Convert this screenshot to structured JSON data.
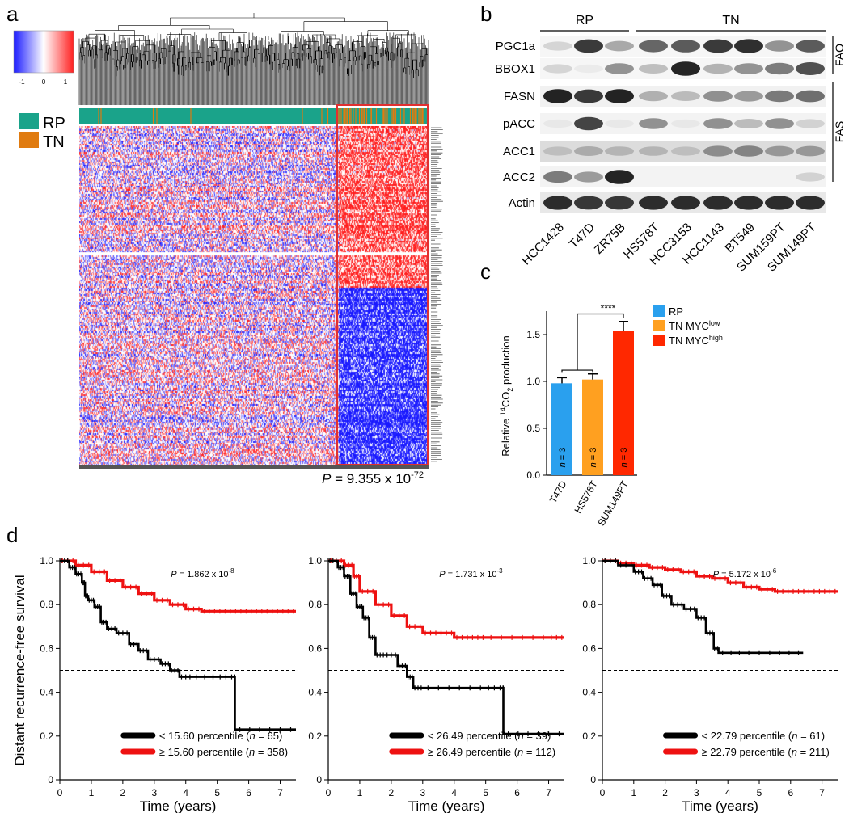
{
  "panel_labels": {
    "a": "a",
    "b": "b",
    "c": "c",
    "d": "d"
  },
  "panel_a": {
    "scale_ticks": [
      "-1",
      "0",
      "1"
    ],
    "legend": [
      {
        "label": "RP",
        "color": "#1aa38a"
      },
      {
        "label": "TN",
        "color": "#e07b10"
      }
    ],
    "p_value": {
      "prefix": "P",
      "eq": " = 9.355 x 10",
      "exp": "-72"
    },
    "colors": {
      "high": "#ff2020",
      "low": "#1a1aff",
      "rp": "#1aa38a",
      "tn": "#e07b10",
      "box": "#e03030"
    }
  },
  "panel_b": {
    "groups": [
      {
        "label": "RP"
      },
      {
        "label": "TN"
      }
    ],
    "rows": [
      "PGC1a",
      "BBOX1",
      "FASN",
      "pACC",
      "ACC1",
      "ACC2",
      "Actin"
    ],
    "brackets": [
      {
        "label": "FAO"
      },
      {
        "label": "FAS"
      }
    ],
    "lanes": [
      "HCC1428",
      "T47D",
      "ZR75B",
      "HS578T",
      "HCC3153",
      "HCC1143",
      "BT549",
      "SUM159PT",
      "SUM149PT"
    ]
  },
  "panel_c": {
    "chart_data": {
      "type": "bar",
      "categories": [
        "T47D",
        "HS578T",
        "SUM149PT"
      ],
      "values": [
        0.98,
        1.02,
        1.54
      ],
      "errors": [
        0.06,
        0.06,
        0.1
      ],
      "n_labels": [
        "n = 3",
        "n = 3",
        "n = 3"
      ],
      "colors": [
        "#2aa0ee",
        "#ffa020",
        "#ff2800"
      ],
      "ylabel": "Relative 14CO2 production",
      "ylabel_parts": {
        "pre": "Relative ",
        "sup": "14",
        "mid": "CO",
        "sub": "2",
        "post": " production"
      },
      "ylim": [
        0,
        1.75
      ],
      "yticks": [
        "0.0",
        "0.5",
        "1.0",
        "1.5"
      ],
      "significance": "****",
      "legend": [
        {
          "label": "RP",
          "sup": "",
          "color": "#2aa0ee"
        },
        {
          "label": "TN MYC",
          "sup": "low",
          "color": "#ffa020"
        },
        {
          "label": "TN MYC",
          "sup": "high",
          "color": "#ff2800"
        }
      ]
    }
  },
  "panel_d": {
    "chart_data": [
      {
        "type": "line",
        "xlabel": "Time (years)",
        "ylabel": "Distant recurrence-free survival",
        "xlim": [
          0,
          7.5
        ],
        "ylim": [
          0,
          1.0
        ],
        "xticks": [
          "0",
          "1",
          "2",
          "3",
          "4",
          "5",
          "6",
          "7"
        ],
        "yticks": [
          "0",
          "0.2",
          "0.4",
          "0.6",
          "0.8",
          "1.0"
        ],
        "p_value": {
          "prefix": "P",
          "eq": " = 1.862 x 10",
          "exp": "-8"
        },
        "reference_line": 0.5,
        "series": [
          {
            "name": "< 15.60 percentile",
            "n": "65",
            "color": "#000000",
            "x": [
              0,
              0.3,
              0.5,
              0.7,
              0.8,
              0.9,
              1.1,
              1.3,
              1.5,
              1.8,
              2.2,
              2.5,
              2.8,
              3.2,
              3.5,
              3.8,
              4.2,
              5.0,
              5.55,
              5.56,
              6.5,
              7.5
            ],
            "y": [
              1.0,
              0.97,
              0.94,
              0.9,
              0.84,
              0.82,
              0.79,
              0.72,
              0.69,
              0.67,
              0.62,
              0.59,
              0.55,
              0.53,
              0.5,
              0.47,
              0.47,
              0.47,
              0.47,
              0.23,
              0.23,
              0.23
            ]
          },
          {
            "name": "≥ 15.60 percentile",
            "n": "358",
            "color": "#ee1111",
            "x": [
              0,
              0.5,
              1,
              1.5,
              2,
              2.5,
              3,
              3.5,
              4,
              4.5,
              5,
              5.5,
              6,
              6.5,
              7,
              7.5
            ],
            "y": [
              1.0,
              0.98,
              0.95,
              0.91,
              0.88,
              0.85,
              0.82,
              0.8,
              0.78,
              0.77,
              0.77,
              0.77,
              0.77,
              0.77,
              0.77,
              0.77
            ]
          }
        ],
        "legend_labels": [
          {
            "text": "< 15.60 percentile (",
            "n": "n",
            "rest": " = 65)"
          },
          {
            "text": "≥ 15.60 percentile (",
            "n": "n",
            "rest": " = 358)"
          }
        ]
      },
      {
        "type": "line",
        "xlabel": "Time (years)",
        "ylabel": "",
        "xlim": [
          0,
          7.5
        ],
        "ylim": [
          0,
          1.0
        ],
        "xticks": [
          "0",
          "1",
          "2",
          "3",
          "4",
          "5",
          "6",
          "7"
        ],
        "yticks": [
          "0",
          "0.2",
          "0.4",
          "0.6",
          "0.8",
          "1.0"
        ],
        "p_value": {
          "prefix": "P",
          "eq": " = 1.731 x 10",
          "exp": "-3"
        },
        "reference_line": 0.5,
        "series": [
          {
            "name": "< 26.49 percentile",
            "n": "39",
            "color": "#000000",
            "x": [
              0,
              0.3,
              0.5,
              0.7,
              0.9,
              1.1,
              1.3,
              1.5,
              1.8,
              2.2,
              2.5,
              2.7,
              3.0,
              4.0,
              5.0,
              5.55,
              5.56,
              6.5,
              7.5
            ],
            "y": [
              1.0,
              0.97,
              0.93,
              0.85,
              0.79,
              0.74,
              0.65,
              0.57,
              0.57,
              0.52,
              0.47,
              0.42,
              0.42,
              0.42,
              0.42,
              0.42,
              0.21,
              0.21,
              0.21
            ]
          },
          {
            "name": "≥ 26.49 percentile",
            "n": "112",
            "color": "#ee1111",
            "x": [
              0,
              0.5,
              0.8,
              1.0,
              1.5,
              2.0,
              2.5,
              3.0,
              3.5,
              4.0,
              4.5,
              5.0,
              6.0,
              7.0,
              7.5
            ],
            "y": [
              1.0,
              0.98,
              0.93,
              0.86,
              0.8,
              0.75,
              0.7,
              0.67,
              0.67,
              0.65,
              0.65,
              0.65,
              0.65,
              0.65,
              0.65
            ]
          }
        ],
        "legend_labels": [
          {
            "text": "< 26.49 percentile (",
            "n": "n",
            "rest": " = 39)"
          },
          {
            "text": "≥ 26.49 percentile (",
            "n": "n",
            "rest": " = 112)"
          }
        ]
      },
      {
        "type": "line",
        "xlabel": "Time (years)",
        "ylabel": "",
        "xlim": [
          0,
          7.5
        ],
        "ylim": [
          0,
          1.0
        ],
        "xticks": [
          "0",
          "1",
          "2",
          "3",
          "4",
          "5",
          "6",
          "7"
        ],
        "yticks": [
          "0",
          "0.2",
          "0.4",
          "0.6",
          "0.8",
          "1.0"
        ],
        "p_value": {
          "prefix": "P",
          "eq": " = 5.172 x 10",
          "exp": "-6"
        },
        "reference_line": 0.5,
        "series": [
          {
            "name": "< 22.79 percentile",
            "n": "61",
            "color": "#000000",
            "x": [
              0,
              0.5,
              1.0,
              1.3,
              1.6,
              1.9,
              2.2,
              2.6,
              3.0,
              3.3,
              3.55,
              3.7,
              4.5,
              5.5,
              6.4
            ],
            "y": [
              1.0,
              0.98,
              0.95,
              0.92,
              0.89,
              0.84,
              0.8,
              0.78,
              0.74,
              0.67,
              0.6,
              0.58,
              0.58,
              0.58,
              0.58
            ]
          },
          {
            "name": "≥ 22.79 percentile",
            "n": "211",
            "color": "#ee1111",
            "x": [
              0,
              0.5,
              1,
              1.5,
              2,
              2.5,
              3,
              3.5,
              4,
              4.5,
              5,
              5.5,
              6,
              6.5,
              7,
              7.5
            ],
            "y": [
              1.0,
              0.99,
              0.98,
              0.97,
              0.96,
              0.95,
              0.93,
              0.92,
              0.9,
              0.88,
              0.87,
              0.86,
              0.86,
              0.86,
              0.86,
              0.86
            ]
          }
        ],
        "legend_labels": [
          {
            "text": "< 22.79 percentile (",
            "n": "n",
            "rest": " = 61)"
          },
          {
            "text": "≥ 22.79 percentile (",
            "n": "n",
            "rest": " = 211)"
          }
        ]
      }
    ]
  }
}
